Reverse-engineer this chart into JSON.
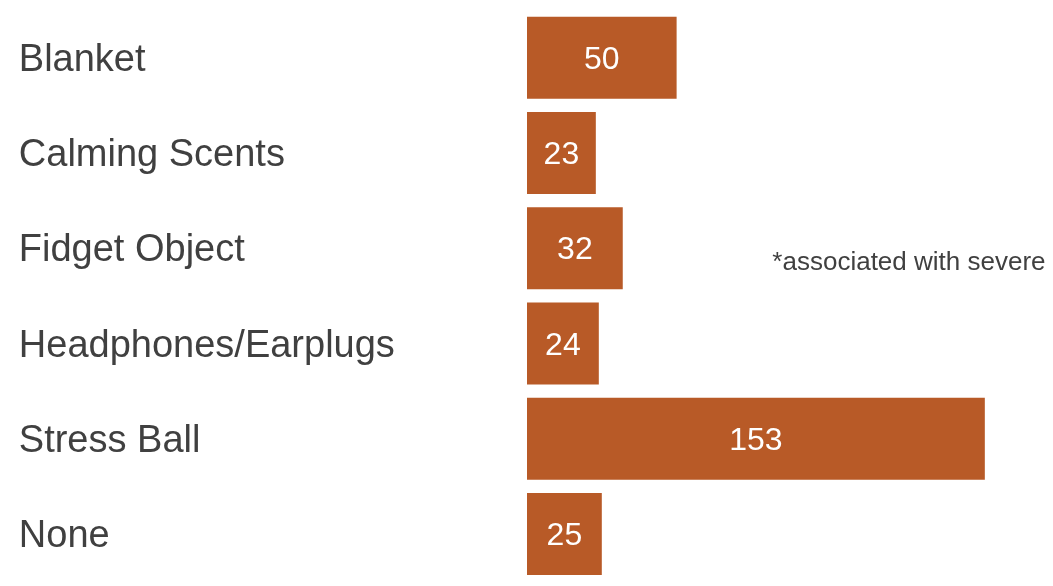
{
  "chart_data": {
    "type": "bar",
    "orientation": "horizontal",
    "categories": [
      "Blanket",
      "Calming Scents",
      "Fidget Object",
      "Headphones/Earplugs",
      "Stress Ball",
      "None"
    ],
    "values": [
      50,
      23,
      32,
      24,
      153,
      25
    ],
    "color": "#b85a27",
    "data_labels": true,
    "annotations": [
      "*associated with severe"
    ]
  }
}
